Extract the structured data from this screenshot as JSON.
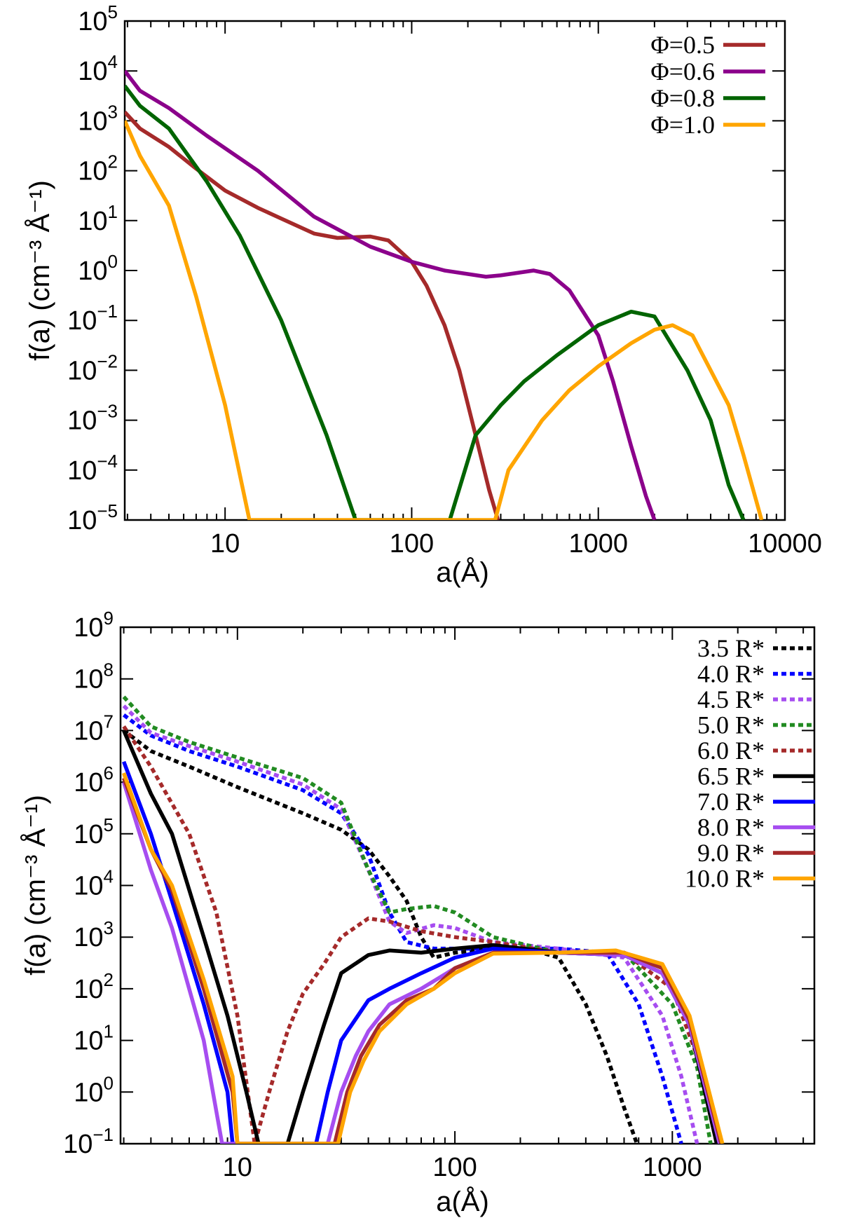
{
  "chart_data": [
    {
      "type": "line",
      "title": "",
      "xlabel": "a(Å)",
      "ylabel": "f(a) (cm⁻³ Å⁻¹)",
      "xscale": "log",
      "yscale": "log",
      "xlim": [
        2.9,
        10000
      ],
      "ylim": [
        1e-05,
        100000.0
      ],
      "xticks": [
        10,
        100,
        1000,
        10000
      ],
      "xtick_labels": [
        "10",
        "100",
        "1000",
        "10000"
      ],
      "ytick_exponents": [
        -5,
        -4,
        -3,
        -2,
        -1,
        0,
        1,
        2,
        3,
        4,
        5
      ],
      "legend_position": "top-right",
      "series": [
        {
          "name": "Φ=0.5",
          "color": "#a52a2a",
          "style": "solid",
          "x": [
            2.9,
            3.5,
            5,
            7,
            10,
            15,
            20,
            30,
            40,
            60,
            75,
            100,
            120,
            150,
            180,
            220,
            260,
            290
          ],
          "y": [
            1500,
            700,
            300,
            110,
            40,
            18,
            11,
            5.5,
            4.5,
            4.8,
            4,
            1.5,
            0.5,
            0.08,
            0.01,
            0.0005,
            4e-05,
            1e-05
          ]
        },
        {
          "name": "Φ=0.6",
          "color": "#8b008b",
          "style": "solid",
          "x": [
            2.9,
            3.5,
            5,
            8,
            15,
            30,
            60,
            100,
            150,
            250,
            300,
            450,
            550,
            700,
            1000,
            1200,
            1500,
            1800,
            2000
          ],
          "y": [
            10000,
            4000,
            1800,
            500,
            100,
            12,
            3,
            1.5,
            1,
            0.75,
            0.8,
            1,
            0.85,
            0.4,
            0.05,
            0.006,
            0.0003,
            3e-05,
            1e-05
          ]
        },
        {
          "name": "Φ=0.8",
          "color": "#006400",
          "style": "solid",
          "x": [
            2.9,
            3.5,
            5,
            8,
            12,
            20,
            35,
            50,
            160,
            220,
            300,
            400,
            600,
            1000,
            1500,
            2000,
            3000,
            4000,
            5000,
            6000
          ],
          "y": [
            5000,
            2000,
            700,
            60,
            5,
            0.1,
            0.0005,
            1e-05,
            1e-05,
            0.0005,
            0.002,
            0.006,
            0.02,
            0.08,
            0.15,
            0.12,
            0.01,
            0.001,
            5e-05,
            1e-05
          ]
        },
        {
          "name": "Φ=1.0",
          "color": "#ffa500",
          "style": "solid",
          "x": [
            2.9,
            3.5,
            5,
            7,
            10,
            13.5,
            280,
            330,
            500,
            700,
            1000,
            1500,
            2000,
            2500,
            3200,
            4000,
            5000,
            6000,
            7500
          ],
          "y": [
            1000,
            200,
            20,
            0.3,
            0.002,
            1e-05,
            1e-05,
            0.0001,
            0.001,
            0.004,
            0.012,
            0.035,
            0.065,
            0.08,
            0.05,
            0.01,
            0.002,
            0.0002,
            1e-05
          ]
        }
      ]
    },
    {
      "type": "line",
      "title": "",
      "xlabel": "a(Å)",
      "ylabel": "f(a) (cm⁻³ Å⁻¹)",
      "xscale": "log",
      "yscale": "log",
      "xlim": [
        2.9,
        4500
      ],
      "ylim": [
        0.1,
        1000000000.0
      ],
      "xticks": [
        10,
        100,
        1000
      ],
      "xtick_labels": [
        "10",
        "100",
        "1000"
      ],
      "ytick_exponents": [
        -1,
        0,
        1,
        2,
        3,
        4,
        5,
        6,
        7,
        8,
        9
      ],
      "legend_position": "top-right",
      "series": [
        {
          "name": "3.5 R*",
          "color": "#000000",
          "style": "dashed",
          "x": [
            3,
            4,
            6,
            10,
            20,
            30,
            40,
            50,
            60,
            70,
            80,
            100,
            150,
            250,
            300,
            400,
            500,
            600,
            700
          ],
          "y": [
            10000000.0,
            4000000.0,
            2000000.0,
            800000.0,
            250000.0,
            120000.0,
            50000.0,
            15000.0,
            5000.0,
            1000.0,
            400.0,
            500.0,
            600.0,
            500.0,
            400.0,
            50,
            5,
            0.5,
            0.08
          ]
        },
        {
          "name": "4.0 R*",
          "color": "#0000ff",
          "style": "dashed",
          "x": [
            3,
            4,
            6,
            10,
            20,
            30,
            40,
            50,
            60,
            80,
            100,
            150,
            300,
            500,
            700,
            900,
            1100
          ],
          "y": [
            20000000.0,
            8000000.0,
            4000000.0,
            2000000.0,
            700000.0,
            250000.0,
            40000.0,
            3000.0,
            800.0,
            600.0,
            600.0,
            600.0,
            600.0,
            500.0,
            50,
            2,
            0.1
          ]
        },
        {
          "name": "4.5 R*",
          "color": "#a64df0",
          "style": "dashed",
          "x": [
            3,
            4,
            6,
            10,
            20,
            30,
            40,
            50,
            60,
            80,
            100,
            150,
            300,
            600,
            900,
            1100,
            1300
          ],
          "y": [
            30000000.0,
            9000000.0,
            5000000.0,
            2500000.0,
            900000.0,
            300000.0,
            20000.0,
            2000.0,
            1200.0,
            1700.0,
            1500.0,
            800.0,
            600.0,
            400.0,
            30,
            2,
            0.1
          ]
        },
        {
          "name": "5.0 R*",
          "color": "#228b22",
          "style": "dashed",
          "x": [
            3,
            4,
            6,
            10,
            20,
            30,
            40,
            50,
            60,
            80,
            100,
            150,
            300,
            600,
            1000,
            1300,
            1500
          ],
          "y": [
            45000000.0,
            12000000.0,
            6000000.0,
            3000000.0,
            1200000.0,
            400000.0,
            20000.0,
            3000.0,
            3500.0,
            4000.0,
            3000.0,
            1000.0,
            500.0,
            500.0,
            50,
            3,
            0.1
          ]
        },
        {
          "name": "6.0 R*",
          "color": "#a52a2a",
          "style": "dashed",
          "x": [
            3,
            4,
            6,
            8,
            10,
            12,
            14,
            17,
            20,
            25,
            30,
            40,
            50,
            70,
            100,
            150,
            300,
            600,
            1000,
            1300,
            1600
          ],
          "y": [
            12000000.0,
            2000000.0,
            100000.0,
            3000.0,
            30,
            0.1,
            1,
            15,
            80,
            300.0,
            1000.0,
            2300.0,
            2000.0,
            1300.0,
            1000.0,
            800.0,
            500.0,
            500.0,
            100.0,
            5,
            0.1
          ]
        },
        {
          "name": "6.5 R*",
          "color": "#000000",
          "style": "solid",
          "x": [
            3,
            4,
            5,
            7,
            9,
            11,
            12.5,
            17,
            20,
            25,
            30,
            40,
            50,
            70,
            100,
            150,
            300,
            600,
            900,
            1200,
            1600
          ],
          "y": [
            10000000.0,
            600000.0,
            100000.0,
            1000.0,
            30,
            1,
            0.1,
            0.1,
            1,
            20,
            200.0,
            450.0,
            550.0,
            500.0,
            600.0,
            700.0,
            500.0,
            450.0,
            200.0,
            20,
            0.1
          ]
        },
        {
          "name": "7.0 R*",
          "color": "#0000ff",
          "style": "solid",
          "x": [
            3,
            4,
            5,
            7,
            9,
            9.5,
            23,
            26,
            30,
            40,
            50,
            70,
            100,
            150,
            300,
            600,
            900,
            1200,
            1650
          ],
          "y": [
            2500000.0,
            100000.0,
            5000.0,
            50,
            1,
            0.1,
            0.1,
            1,
            10,
            60,
            100.0,
            200.0,
            400.0,
            600.0,
            500.0,
            450.0,
            200.0,
            20,
            0.1
          ]
        },
        {
          "name": "8.0 R*",
          "color": "#a64df0",
          "style": "solid",
          "x": [
            3,
            4,
            5,
            7,
            8.5,
            26,
            30,
            35,
            40,
            50,
            70,
            100,
            150,
            300,
            600,
            900,
            1200,
            1650
          ],
          "y": [
            1000000.0,
            20000.0,
            1500.0,
            10,
            0.1,
            0.1,
            1,
            5,
            15,
            50,
            100.0,
            250.0,
            500.0,
            500.0,
            450.0,
            200.0,
            20,
            0.1
          ]
        },
        {
          "name": "9.0 R*",
          "color": "#a52a2a",
          "style": "solid",
          "x": [
            3,
            4,
            5,
            7,
            9.5,
            10,
            28,
            32,
            37,
            45,
            60,
            80,
            100,
            150,
            300,
            600,
            900,
            1200,
            1680
          ],
          "y": [
            1200000.0,
            50000.0,
            8000.0,
            100.0,
            1,
            0.1,
            0.1,
            1,
            5,
            20,
            60,
            100.0,
            250.0,
            500.0,
            500.0,
            500.0,
            250.0,
            25,
            0.1
          ]
        },
        {
          "name": "10.0 R*",
          "color": "#ffa500",
          "style": "solid",
          "x": [
            3,
            4,
            5,
            7,
            9.5,
            10,
            29,
            33,
            38,
            45,
            60,
            80,
            100,
            150,
            300,
            550,
            900,
            1200,
            1700
          ],
          "y": [
            1500000.0,
            50000.0,
            10000.0,
            150.0,
            2,
            0.1,
            0.1,
            1,
            4,
            15,
            50,
            100.0,
            200.0,
            480.0,
            500.0,
            550.0,
            300.0,
            30,
            0.1
          ]
        }
      ]
    }
  ]
}
